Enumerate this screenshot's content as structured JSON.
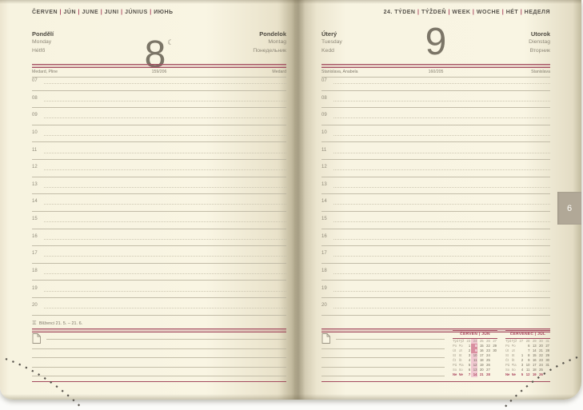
{
  "left_page": {
    "month_parts": [
      "ČERVEN",
      "JÚN",
      "JUNE",
      "JUNI",
      "JÚNIUS",
      "ИЮНЬ"
    ],
    "day_names_left": [
      "Pondělí",
      "Monday",
      "Hétfő"
    ],
    "day_number": "8",
    "moon_icon": "☾",
    "day_names_right": [
      "Pondelok",
      "Montag",
      "Понедельник"
    ],
    "nameday_left": "Medard, Pline",
    "day_of_year": "159/206",
    "nameday_right": "Medard",
    "zodiac_icon": "♊",
    "zodiac_label": "Blíženci 21. 5. – 21. 6."
  },
  "right_page": {
    "week_parts": [
      "24. TÝDEN",
      "TÝŽDEŇ",
      "WEEK",
      "WOCHE",
      "HÉT",
      "НЕДЕЛЯ"
    ],
    "day_names_left": [
      "Úterý",
      "Tuesday",
      "Kedd"
    ],
    "day_number": "9",
    "day_names_right": [
      "Utorok",
      "Dienstag",
      "Вторник"
    ],
    "nameday_left": "Stanislava, Anabela",
    "day_of_year": "160/205",
    "nameday_right": "Stanislava",
    "tab_label": "6"
  },
  "hours": [
    "07",
    "08",
    "09",
    "10",
    "11",
    "12",
    "13",
    "14",
    "15",
    "16",
    "17",
    "18",
    "19",
    "20"
  ],
  "minical_row_labels": [
    [
      "Týd",
      "Týž"
    ],
    [
      "Po",
      "Po"
    ],
    [
      "Út",
      "Ut"
    ],
    [
      "St",
      "St"
    ],
    [
      "Čt",
      "Št"
    ],
    [
      "Pá",
      "Pia"
    ],
    [
      "So",
      "So"
    ],
    [
      "Ne",
      "Ne"
    ]
  ],
  "mini_calendars": [
    {
      "title": "ČERVEN | JÚN",
      "highlight_col": 1,
      "strong_cells": [
        [
          1,
          1
        ],
        [
          2,
          1
        ]
      ],
      "rows": [
        [
          "23",
          "24",
          "25",
          "26",
          "27"
        ],
        [
          "1",
          "8",
          "15",
          "22",
          "29"
        ],
        [
          "2",
          "9",
          "16",
          "23",
          "30"
        ],
        [
          "3",
          "10",
          "17",
          "24",
          ""
        ],
        [
          "4",
          "11",
          "18",
          "25",
          ""
        ],
        [
          "5",
          "12",
          "19",
          "26",
          ""
        ],
        [
          "6",
          "13",
          "20",
          "27",
          ""
        ],
        [
          "7",
          "14",
          "21",
          "28",
          ""
        ]
      ]
    },
    {
      "title": "ČERVENEC | JÚL",
      "highlight_col": -1,
      "strong_cells": [],
      "rows": [
        [
          "27",
          "28",
          "29",
          "30",
          "31"
        ],
        [
          "",
          "6",
          "13",
          "20",
          "27"
        ],
        [
          "",
          "7",
          "14",
          "21",
          "28"
        ],
        [
          "1",
          "8",
          "15",
          "22",
          "29"
        ],
        [
          "2",
          "9",
          "16",
          "23",
          "30"
        ],
        [
          "3",
          "10",
          "17",
          "24",
          "31"
        ],
        [
          "4",
          "11",
          "18",
          "25",
          ""
        ],
        [
          "5",
          "12",
          "19",
          "26",
          ""
        ]
      ]
    }
  ],
  "colors": {
    "accent_red": "#a8415b",
    "paper": "#f9f5e3",
    "line_grey": "#c2bca8",
    "text_dark": "#4d4940",
    "text_grey": "#8d8777",
    "highlight_pink": "#f0c9d1",
    "today_pink": "#d98fa0",
    "tab_grey": "#b1a897"
  }
}
